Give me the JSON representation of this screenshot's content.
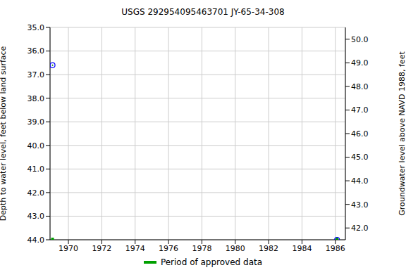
{
  "chart_data": {
    "type": "scatter",
    "title": "USGS 292954095463701 JY-65-34-308",
    "x_label": null,
    "y_label": "Depth to water level, feet below land surface",
    "y2_label": "Groundwater level above NAVD 1988, feet",
    "x": [
      1969.05,
      1986.1
    ],
    "values": [
      36.6,
      44.0
    ],
    "color": "#0000ff",
    "marker": "circle",
    "xlim": [
      1968.9,
      1986.6
    ],
    "xticks": [
      1970,
      1972,
      1974,
      1976,
      1978,
      1980,
      1982,
      1984,
      1986
    ],
    "ylim": [
      35,
      44
    ],
    "yticks": [
      {
        "value": 35,
        "label": "35.0"
      },
      {
        "value": 36,
        "label": "36.0"
      },
      {
        "value": 37,
        "label": "37.0"
      },
      {
        "value": 38,
        "label": "38.0"
      },
      {
        "value": 39,
        "label": "39.0"
      },
      {
        "value": 40,
        "label": "40.0"
      },
      {
        "value": 41,
        "label": "41.0"
      },
      {
        "value": 42,
        "label": "42.0"
      },
      {
        "value": 43,
        "label": "43.0"
      },
      {
        "value": 44,
        "label": "44.0"
      }
    ],
    "y2lim": [
      41.5,
      50.5
    ],
    "y2ticks": [
      {
        "value": 42,
        "label": "42.0"
      },
      {
        "value": 43,
        "label": "43.0"
      },
      {
        "value": 44,
        "label": "44.0"
      },
      {
        "value": 45,
        "label": "45.0"
      },
      {
        "value": 46,
        "label": "46.0"
      },
      {
        "value": 47,
        "label": "47.0"
      },
      {
        "value": 48,
        "label": "48.0"
      },
      {
        "value": 49,
        "label": "49.0"
      },
      {
        "value": 50,
        "label": "50.0"
      }
    ],
    "grid": true,
    "series": [
      {
        "name": "Period of approved data",
        "color": "#00a000",
        "x": [
          1969.05,
          1986.1
        ]
      }
    ]
  }
}
